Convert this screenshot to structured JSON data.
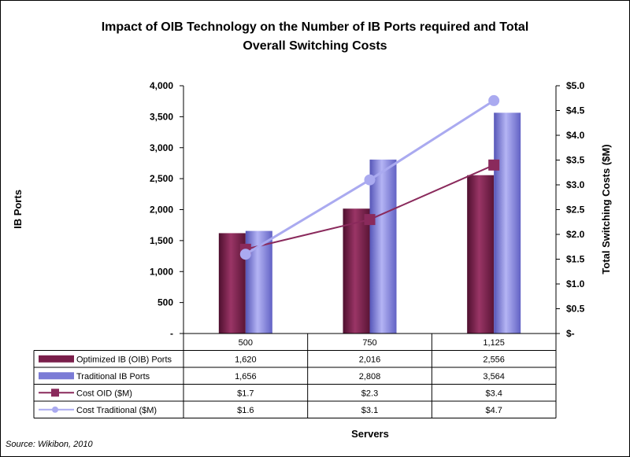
{
  "chart_data": {
    "type": "bar",
    "title_lines": [
      "Impact of OIB Technology on the Number of IB Ports required and Total",
      "Overall Switching Costs"
    ],
    "xlabel": "Servers",
    "ylabel": "IB Ports",
    "y2label": "Total Switching Costs ($M)",
    "categories": [
      "500",
      "750",
      "1,125"
    ],
    "ylim": [
      0,
      4000
    ],
    "y2lim": [
      0,
      5.0
    ],
    "y_ticks": [
      {
        "value": 0,
        "label": "-"
      },
      {
        "value": 500,
        "label": "500"
      },
      {
        "value": 1000,
        "label": "1,000"
      },
      {
        "value": 1500,
        "label": "1,500"
      },
      {
        "value": 2000,
        "label": "2,000"
      },
      {
        "value": 2500,
        "label": "2,500"
      },
      {
        "value": 3000,
        "label": "3,000"
      },
      {
        "value": 3500,
        "label": "3,500"
      },
      {
        "value": 4000,
        "label": "4,000"
      }
    ],
    "y2_ticks": [
      {
        "value": 0,
        "label": "$-"
      },
      {
        "value": 0.5,
        "label": "$0.5"
      },
      {
        "value": 1.0,
        "label": "$1.0"
      },
      {
        "value": 1.5,
        "label": "$1.5"
      },
      {
        "value": 2.0,
        "label": "$2.0"
      },
      {
        "value": 2.5,
        "label": "$2.5"
      },
      {
        "value": 3.0,
        "label": "$3.0"
      },
      {
        "value": 3.5,
        "label": "$3.5"
      },
      {
        "value": 4.0,
        "label": "$4.0"
      },
      {
        "value": 4.5,
        "label": "$4.5"
      },
      {
        "value": 5.0,
        "label": "$5.0"
      }
    ],
    "series": [
      {
        "name": "Optimized IB (OIB) Ports",
        "kind": "bar",
        "axis": "left",
        "color": "#7a1e4a",
        "values": [
          1620,
          2016,
          2556
        ],
        "labels": [
          "1,620",
          "2,016",
          "2,556"
        ]
      },
      {
        "name": "Traditional IB Ports",
        "kind": "bar",
        "axis": "left",
        "color": "#7b7bd6",
        "values": [
          1656,
          2808,
          3564
        ],
        "labels": [
          "1,656",
          "2,808",
          "3,564"
        ]
      },
      {
        "name": "Cost OID ($M)",
        "kind": "line",
        "axis": "right",
        "marker": "square",
        "color": "#8a2a5c",
        "values": [
          1.7,
          2.3,
          3.4
        ],
        "labels": [
          "$1.7",
          "$2.3",
          "$3.4"
        ]
      },
      {
        "name": "Cost Traditional ($M)",
        "kind": "line",
        "axis": "right",
        "marker": "circle",
        "color": "#aaaaf0",
        "values": [
          1.6,
          3.1,
          4.7
        ],
        "labels": [
          "$1.6",
          "$3.1",
          "$4.7"
        ]
      }
    ],
    "source": "Source:  Wikibon, 2010"
  }
}
